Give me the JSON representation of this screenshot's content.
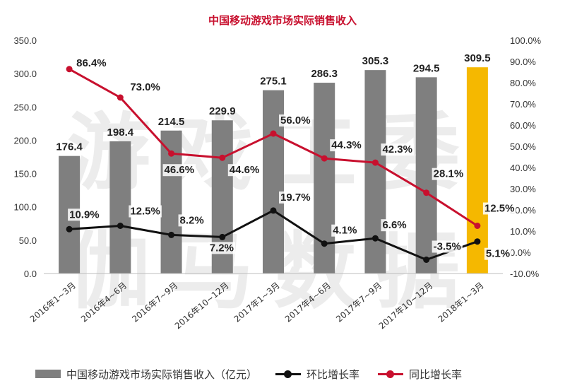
{
  "chart_data": {
    "type": "bar",
    "title": "中国移动游戏市场实际销售收入",
    "categories": [
      "2016年1~3月",
      "2016年4~6月",
      "2016年7~9月",
      "2016年10~12月",
      "2017年1~3月",
      "2017年4~6月",
      "2017年7~9月",
      "2017年10~12月",
      "2018年1~3月"
    ],
    "bar_series": {
      "name": "中国移动游戏市场实际销售收入（亿元）",
      "values": [
        176.4,
        198.4,
        214.5,
        229.9,
        275.1,
        286.3,
        305.3,
        294.5,
        309.5
      ],
      "labels": [
        "176.4",
        "198.4",
        "214.5",
        "229.9",
        "275.1",
        "286.3",
        "305.3",
        "294.5",
        "309.5"
      ],
      "color": "#7f7f7f",
      "highlight_index": 8,
      "highlight_color": "#f5b800"
    },
    "line_series": [
      {
        "name": "环比增长率",
        "color": "#111111",
        "values": [
          10.9,
          12.5,
          8.2,
          7.2,
          19.7,
          4.1,
          6.6,
          -3.5,
          5.1
        ],
        "labels": [
          "10.9%",
          "12.5%",
          "8.2%",
          "7.2%",
          "19.7%",
          "4.1%",
          "6.6%",
          "-3.5%",
          "5.1%"
        ]
      },
      {
        "name": "同比增长率",
        "color": "#c8102e",
        "values": [
          86.4,
          73.0,
          46.6,
          44.6,
          56.0,
          44.3,
          42.3,
          28.1,
          12.5
        ],
        "labels": [
          "86.4%",
          "73.0%",
          "46.6%",
          "44.6%",
          "56.0%",
          "44.3%",
          "42.3%",
          "28.1%",
          "12.5%"
        ]
      }
    ],
    "y_left": {
      "min": 0,
      "max": 350,
      "ticks": [
        "0.0",
        "50.0",
        "100.0",
        "150.0",
        "200.0",
        "250.0",
        "300.0",
        "350.0"
      ]
    },
    "y_right": {
      "min": -10,
      "max": 100,
      "ticks": [
        "-10.0%",
        "0.0%",
        "10.0%",
        "20.0%",
        "30.0%",
        "40.0%",
        "50.0%",
        "60.0%",
        "70.0%",
        "80.0%",
        "90.0%",
        "100.0%"
      ]
    },
    "grid": false,
    "legend": "bottom"
  },
  "watermark": {
    "line1": "游戏工委",
    "line2": "伽马数据"
  },
  "legend": {
    "bar_label": "中国移动游戏市场实际销售收入（亿元）",
    "line1_label": "环比增长率",
    "line2_label": "同比增长率"
  }
}
